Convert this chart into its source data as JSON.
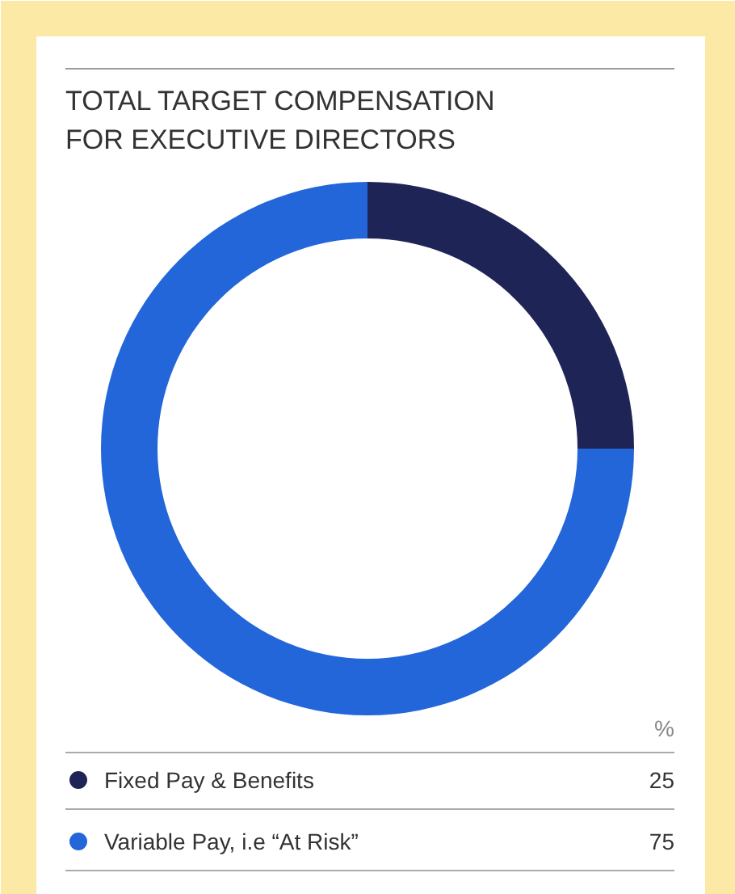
{
  "chart_data": {
    "type": "donut",
    "title": "TOTAL TARGET COMPENSATION\nFOR EXECUTIVE DIRECTORS",
    "categories": [
      "Fixed Pay & Benefits",
      "Variable Pay, i.e “At Risk”"
    ],
    "values": [
      25,
      75
    ],
    "colors": [
      "#1f2456",
      "#2366d9"
    ],
    "legend": "bottom",
    "legend_title": "%",
    "data_labels": true
  }
}
